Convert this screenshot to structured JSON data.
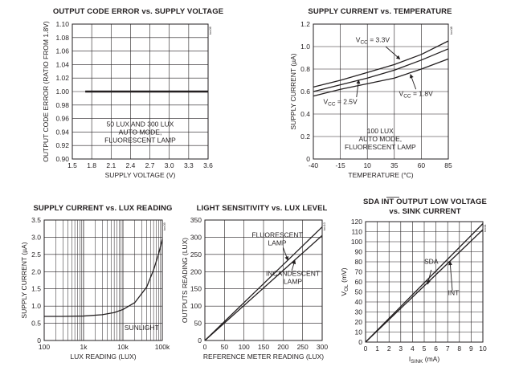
{
  "chart_data": [
    {
      "type": "line",
      "title": "OUTPUT CODE ERROR vs. SUPPLY VOLTAGE",
      "xlabel": "SUPPLY VOLTAGE (V)",
      "ylabel": "OUTPUT CODE ERROR (RATIO FROM 1.8V)",
      "xlim": [
        1.5,
        3.6
      ],
      "ylim": [
        0.9,
        1.1
      ],
      "x_ticks": [
        1.5,
        1.8,
        2.1,
        2.4,
        2.7,
        3.0,
        3.3,
        3.6
      ],
      "x_tick_labels": [
        "1.5",
        "1.8",
        "2.1",
        "2.4",
        "2.7",
        "3.0",
        "3.3",
        "3.6"
      ],
      "y_ticks": [
        0.9,
        0.92,
        0.94,
        0.96,
        0.98,
        1.0,
        1.02,
        1.04,
        1.06,
        1.08,
        1.1
      ],
      "y_tick_labels": [
        "0.90",
        "0.92",
        "0.94",
        "0.96",
        "0.98",
        "1.00",
        "1.02",
        "1.04",
        "1.06",
        "1.08",
        "1.10"
      ],
      "grid": true,
      "series": [
        {
          "x": [
            1.7,
            3.6
          ],
          "y": [
            1.0,
            1.0
          ]
        }
      ],
      "annotations": [
        {
          "lines": [
            "50 LUX AND 300 LUX",
            "AUTO MODE,",
            "FLUORESCENT LAMP"
          ],
          "x": 2.55,
          "y": 0.948
        }
      ],
      "code_label": "toc06"
    },
    {
      "type": "line",
      "title": "SUPPLY CURRENT vs. TEMPERATURE",
      "xlabel": "TEMPERATURE (°C)",
      "ylabel": "SUPPLY CURRENT (µA)",
      "xlim": [
        -40,
        85
      ],
      "ylim": [
        0,
        1.2
      ],
      "x_ticks": [
        -40,
        -15,
        10,
        35,
        60,
        85
      ],
      "x_tick_labels": [
        "-40",
        "-15",
        "10",
        "35",
        "60",
        "85"
      ],
      "y_ticks": [
        0,
        0.2,
        0.4,
        0.6,
        0.8,
        1.0,
        1.2
      ],
      "y_tick_labels": [
        "0",
        "0.2",
        "0.4",
        "0.6",
        "0.8",
        "1.0",
        "1.2"
      ],
      "grid": true,
      "series": [
        {
          "x": [
            -40,
            -15,
            10,
            35,
            60,
            85
          ],
          "y": [
            0.64,
            0.7,
            0.77,
            0.84,
            0.93,
            1.05
          ]
        },
        {
          "x": [
            -40,
            -15,
            10,
            35,
            60,
            85
          ],
          "y": [
            0.6,
            0.66,
            0.72,
            0.79,
            0.88,
            0.98
          ]
        },
        {
          "x": [
            -40,
            -15,
            10,
            35,
            60,
            85
          ],
          "y": [
            0.56,
            0.62,
            0.67,
            0.72,
            0.8,
            0.89
          ]
        }
      ],
      "annotations": [
        {
          "lines": [
            "VCC = 3.3V"
          ],
          "x": 15,
          "y": 1.04
        },
        {
          "lines": [
            "VCC = 2.5V"
          ],
          "x": -15,
          "y": 0.49
        },
        {
          "lines": [
            "VCC = 1.8V"
          ],
          "x": 55,
          "y": 0.56
        },
        {
          "lines": [
            "100 LUX",
            "AUTO MODE,",
            "FLUORESCENT LAMP"
          ],
          "x": 22,
          "y": 0.23
        }
      ],
      "code_label": "toc08"
    },
    {
      "type": "line",
      "title": "SUPPLY CURRENT vs. LUX READING",
      "xlabel": "LUX READING (LUX)",
      "ylabel": "SUPPLY CURRENT (µA)",
      "x_scale": "log",
      "xlim": [
        100,
        100000
      ],
      "ylim": [
        0,
        3.5
      ],
      "x_ticks": [
        100,
        1000,
        10000,
        100000
      ],
      "x_tick_labels": [
        "100",
        "1k",
        "10k",
        "100k"
      ],
      "y_ticks": [
        0,
        0.5,
        1.0,
        1.5,
        2.0,
        2.5,
        3.0,
        3.5
      ],
      "y_tick_labels": [
        "0",
        "0.5",
        "1.0",
        "1.5",
        "2.0",
        "2.5",
        "3.0",
        "3.5"
      ],
      "grid": true,
      "series": [
        {
          "x": [
            100,
            300,
            1000,
            3000,
            6000,
            10000,
            20000,
            40000,
            60000,
            80000,
            100000
          ],
          "y": [
            0.7,
            0.7,
            0.71,
            0.75,
            0.81,
            0.9,
            1.1,
            1.55,
            2.05,
            2.5,
            2.95
          ]
        }
      ],
      "annotations": [
        {
          "lines": [
            "SUNLIGHT"
          ],
          "x": 30000,
          "y": 0.3
        }
      ],
      "code_label": "toc09"
    },
    {
      "type": "line",
      "title": "LIGHT SENSITIVITY vs. LUX LEVEL",
      "xlabel": "REFERENCE METER READING (LUX)",
      "ylabel": "OUTPUTS READING (LUX)",
      "xlim": [
        0,
        300
      ],
      "ylim": [
        0,
        350
      ],
      "x_ticks": [
        0,
        50,
        100,
        150,
        200,
        250,
        300
      ],
      "x_tick_labels": [
        "0",
        "50",
        "100",
        "150",
        "200",
        "250",
        "300"
      ],
      "y_ticks": [
        0,
        50,
        100,
        150,
        200,
        250,
        300,
        350
      ],
      "y_tick_labels": [
        "0",
        "50",
        "100",
        "150",
        "200",
        "250",
        "300",
        "350"
      ],
      "grid": true,
      "series": [
        {
          "x": [
            0,
            300
          ],
          "y": [
            0,
            330
          ]
        },
        {
          "x": [
            0,
            300
          ],
          "y": [
            0,
            305
          ]
        }
      ],
      "annotations": [
        {
          "lines": [
            "FLUORESCENT",
            "LAMP"
          ],
          "x": 185,
          "y": 300
        },
        {
          "lines": [
            "INCANDESCENT",
            "LAMP"
          ],
          "x": 225,
          "y": 188
        }
      ],
      "code_label": "toc10"
    },
    {
      "type": "line",
      "title": "SDA INT OUTPUT LOW VOLTAGE",
      "subtitle": "vs. SINK CURRENT",
      "xlabel": "ISINK (mA)",
      "ylabel": "VOL (mV)",
      "xlim": [
        0,
        10
      ],
      "ylim": [
        0,
        120
      ],
      "x_ticks": [
        0,
        1,
        2,
        3,
        4,
        5,
        6,
        7,
        8,
        9,
        10
      ],
      "x_tick_labels": [
        "0",
        "1",
        "2",
        "3",
        "4",
        "5",
        "6",
        "7",
        "8",
        "9",
        "10"
      ],
      "y_ticks": [
        0,
        10,
        20,
        30,
        40,
        50,
        60,
        70,
        80,
        90,
        100,
        110,
        120
      ],
      "y_tick_labels": [
        "0",
        "10",
        "20",
        "30",
        "40",
        "50",
        "60",
        "70",
        "80",
        "90",
        "100",
        "110",
        "120"
      ],
      "grid": true,
      "series": [
        {
          "x": [
            0,
            10
          ],
          "y": [
            0,
            118
          ]
        },
        {
          "x": [
            0,
            10
          ],
          "y": [
            0,
            112
          ]
        }
      ],
      "annotations": [
        {
          "lines": [
            "SDA"
          ],
          "x": 5.6,
          "y": 78
        },
        {
          "lines": [
            "INT"
          ],
          "x": 7.5,
          "y": 47
        }
      ],
      "code_label": "toc11"
    }
  ]
}
